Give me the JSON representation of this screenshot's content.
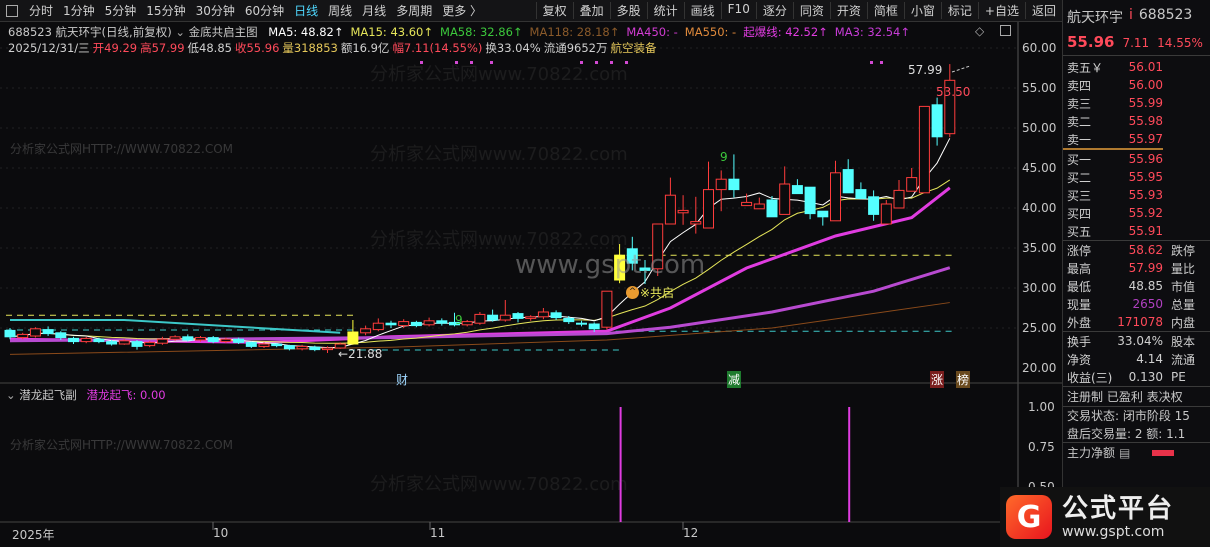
{
  "toolbar": {
    "periods": [
      "分时",
      "1分钟",
      "5分钟",
      "15分钟",
      "30分钟",
      "60分钟",
      "日线",
      "周线",
      "月线",
      "多周期",
      "更多 〉"
    ],
    "active": "日线",
    "tools": [
      "复权",
      "叠加",
      "多股",
      "统计",
      "画线",
      "F10",
      "逐分",
      "同资",
      "开资",
      "简框",
      "小窗",
      "标记",
      "+自选",
      "返回"
    ]
  },
  "header": {
    "title": "688523 航天环宇(日线,前复权)",
    "indicator": "金底共启主图",
    "ma": [
      {
        "label": "MA5: 48.82↑",
        "color": "#ffffff"
      },
      {
        "label": "MA15: 43.60↑",
        "color": "#e6e65a"
      },
      {
        "label": "MA58: 32.86↑",
        "color": "#3cc83c"
      },
      {
        "label": "MA118: 28.18↑",
        "color": "#8a5a2a"
      },
      {
        "label": "MA450: -",
        "color": "#d23cd2"
      },
      {
        "label": "MA550: -",
        "color": "#e08a3c"
      },
      {
        "label": "起爆线: 42.52↑",
        "color": "#e03ce0"
      },
      {
        "label": "MA3: 32.54↑",
        "color": "#c83cd8"
      }
    ],
    "ohlc": [
      {
        "t": "2025/12/31/三",
        "c": "#d0d0d0"
      },
      {
        "t": "开49.29",
        "c": "#ff4a5a"
      },
      {
        "t": "高57.99",
        "c": "#ff4a5a"
      },
      {
        "t": "低48.85",
        "c": "#d0d0d0"
      },
      {
        "t": "收55.96",
        "c": "#ff4a5a"
      },
      {
        "t": "量318853",
        "c": "#e6c85a"
      },
      {
        "t": "额16.9亿",
        "c": "#d0d0d0"
      },
      {
        "t": "幅7.11(14.55%)",
        "c": "#ff4a5a"
      },
      {
        "t": "换33.04%",
        "c": "#d0d0d0"
      },
      {
        "t": "流通9652万",
        "c": "#d0d0d0"
      },
      {
        "t": "航空装备",
        "c": "#e6c85a"
      }
    ]
  },
  "axis": {
    "price_ticks": [
      "60.00",
      "55.00",
      "50.00",
      "45.00",
      "40.00",
      "35.00",
      "30.00",
      "25.00",
      "20.00"
    ],
    "sub_ticks": [
      "1.00",
      "0.75",
      "0.50"
    ],
    "dates": [
      "2025年",
      "10",
      "11",
      "12"
    ]
  },
  "annotations": {
    "high": "57.99",
    "mid": "53.50",
    "low": "←21.88",
    "signal": "※共启",
    "nine": "9",
    "marks": [
      "财",
      "减",
      "涨",
      "榜"
    ]
  },
  "sub": {
    "title": "潜龙起飞副",
    "value": "潜龙起飞: 0.00"
  },
  "watermarks": {
    "a": "分析家公式网www.70822.com",
    "b": "分析家公式网HTTP://WWW.70822.COM",
    "c": "www.gspt.com"
  },
  "chart_data": {
    "type": "candlestick",
    "ylim": [
      20,
      60
    ],
    "up_color": "#ff3c3c",
    "down_color": "#54ffff",
    "ohlc": [
      [
        24.7,
        23.9,
        25.0,
        23.6
      ],
      [
        23.8,
        24.2,
        24.4,
        23.6
      ],
      [
        24.0,
        24.9,
        25.1,
        23.8
      ],
      [
        24.8,
        24.3,
        25.2,
        24.0
      ],
      [
        24.4,
        23.8,
        24.6,
        23.5
      ],
      [
        23.7,
        23.3,
        23.9,
        23.0
      ],
      [
        23.3,
        23.7,
        23.9,
        23.1
      ],
      [
        23.6,
        23.3,
        23.8,
        23.1
      ],
      [
        23.3,
        23.0,
        23.5,
        22.8
      ],
      [
        23.0,
        23.4,
        23.6,
        22.9
      ],
      [
        23.3,
        22.7,
        23.5,
        22.3
      ],
      [
        22.8,
        23.2,
        23.4,
        22.6
      ],
      [
        23.1,
        23.6,
        23.9,
        22.9
      ],
      [
        23.6,
        23.9,
        24.1,
        23.4
      ],
      [
        23.9,
        23.5,
        24.2,
        23.3
      ],
      [
        23.5,
        23.8,
        24.0,
        23.3
      ],
      [
        23.8,
        23.3,
        24.0,
        23.1
      ],
      [
        23.3,
        23.6,
        23.8,
        23.1
      ],
      [
        23.6,
        23.2,
        23.8,
        23.0
      ],
      [
        23.2,
        22.7,
        23.3,
        22.5
      ],
      [
        22.7,
        23.0,
        23.2,
        22.5
      ],
      [
        23.0,
        22.8,
        23.1,
        22.6
      ],
      [
        22.8,
        22.4,
        22.9,
        22.2
      ],
      [
        22.4,
        22.7,
        22.9,
        22.2
      ],
      [
        22.6,
        22.3,
        22.8,
        22.1
      ],
      [
        22.3,
        22.5,
        22.7,
        21.88
      ],
      [
        22.5,
        23.0,
        23.2,
        22.4
      ],
      [
        23.0,
        24.5,
        26.0,
        22.9
      ],
      [
        24.4,
        24.9,
        25.3,
        24.1
      ],
      [
        24.8,
        25.6,
        26.2,
        24.6
      ],
      [
        25.6,
        25.4,
        25.9,
        25.0
      ],
      [
        25.3,
        25.8,
        26.1,
        25.0
      ],
      [
        25.7,
        25.3,
        25.9,
        25.1
      ],
      [
        25.4,
        25.9,
        26.3,
        25.2
      ],
      [
        25.9,
        25.6,
        26.2,
        25.3
      ],
      [
        25.7,
        25.4,
        26.9,
        25.2
      ],
      [
        25.4,
        25.8,
        26.0,
        25.2
      ],
      [
        25.6,
        26.7,
        27.0,
        25.4
      ],
      [
        26.6,
        26.0,
        27.3,
        25.8
      ],
      [
        26.0,
        26.6,
        28.5,
        25.8
      ],
      [
        26.8,
        26.2,
        27.0,
        25.7
      ],
      [
        26.2,
        26.4,
        26.6,
        25.9
      ],
      [
        26.4,
        27.0,
        27.5,
        26.1
      ],
      [
        26.9,
        26.3,
        27.2,
        26.0
      ],
      [
        26.2,
        25.8,
        26.5,
        25.5
      ],
      [
        25.6,
        25.5,
        25.9,
        25.2
      ],
      [
        25.5,
        24.9,
        25.7,
        24.5
      ],
      [
        25.1,
        29.6,
        29.6,
        24.8
      ],
      [
        31.0,
        34.1,
        35.5,
        30.6
      ],
      [
        34.9,
        33.1,
        36.4,
        32.2
      ],
      [
        32.5,
        32.2,
        33.5,
        30.5
      ],
      [
        32.4,
        38.0,
        38.0,
        31.5
      ],
      [
        38.0,
        41.6,
        43.8,
        38.0
      ],
      [
        39.4,
        39.7,
        41.6,
        37.9
      ],
      [
        38.0,
        38.3,
        41.4,
        36.8
      ],
      [
        37.5,
        42.3,
        45.8,
        37.5
      ],
      [
        42.3,
        43.6,
        44.7,
        39.6
      ],
      [
        43.6,
        42.3,
        46.7,
        41.3
      ],
      [
        40.3,
        40.7,
        41.8,
        40.3
      ],
      [
        39.9,
        40.5,
        41.3,
        39.9
      ],
      [
        41.0,
        38.9,
        41.5,
        38.9
      ],
      [
        39.2,
        43.0,
        45.2,
        39.2
      ],
      [
        42.8,
        41.8,
        43.6,
        41.8
      ],
      [
        42.6,
        39.3,
        42.6,
        38.6
      ],
      [
        39.6,
        38.9,
        39.6,
        37.8
      ],
      [
        38.4,
        44.4,
        45.9,
        38.4
      ],
      [
        44.8,
        41.9,
        46.1,
        41.9
      ],
      [
        42.3,
        41.2,
        43.2,
        41.2
      ],
      [
        41.4,
        39.2,
        42.2,
        38.4
      ],
      [
        38.0,
        40.5,
        41.0,
        38.0
      ],
      [
        40.0,
        42.2,
        43.5,
        40.0
      ],
      [
        42.1,
        43.8,
        45.0,
        42.1
      ],
      [
        41.9,
        52.7,
        52.7,
        41.9
      ],
      [
        52.9,
        48.9,
        53.8,
        47.8
      ],
      [
        49.29,
        55.96,
        57.99,
        48.85
      ]
    ],
    "special_yellow": [
      27,
      48
    ],
    "lines": [
      {
        "name": "起爆线",
        "color": "#e03ce0",
        "width": 3,
        "points": [
          [
            0,
            23.6
          ],
          [
            20,
            23.2
          ],
          [
            30,
            23.9
          ],
          [
            47,
            24.6
          ],
          [
            52,
            27.5
          ],
          [
            58,
            32.5
          ],
          [
            65,
            36.5
          ],
          [
            71,
            38.8
          ],
          [
            74,
            42.52
          ]
        ]
      },
      {
        "name": "MA3",
        "color": "#b84ad0",
        "width": 3,
        "points": [
          [
            0,
            23.4
          ],
          [
            30,
            23.8
          ],
          [
            47,
            24.3
          ],
          [
            52,
            25.1
          ],
          [
            60,
            27.0
          ],
          [
            68,
            29.6
          ],
          [
            74,
            32.54
          ]
        ]
      },
      {
        "name": "MA118",
        "color": "#8a4a1a",
        "width": 1,
        "points": [
          [
            0,
            21.7
          ],
          [
            30,
            22.6
          ],
          [
            47,
            23.5
          ],
          [
            60,
            25.0
          ],
          [
            74,
            28.18
          ]
        ]
      },
      {
        "name": "cyan",
        "color": "#3cc8c8",
        "width": 2,
        "points": [
          [
            0,
            26.0
          ],
          [
            9,
            26.0
          ],
          [
            26,
            24.4
          ]
        ]
      }
    ],
    "dashed": [
      {
        "color": "#e6e65a",
        "value": 26.6,
        "from": 0,
        "to": 27
      },
      {
        "color": "#3cc8c8",
        "value": 24.75,
        "from": 0,
        "to": 27
      },
      {
        "color": "#3cc8c8",
        "value": 22.25,
        "from": 27,
        "to": 48
      },
      {
        "color": "#e6e65a",
        "value": 34.1,
        "from": 48,
        "to": 74
      },
      {
        "color": "#3cc8c8",
        "value": 24.6,
        "from": 48,
        "to": 74
      }
    ],
    "sub_spikes": [
      48,
      66
    ]
  },
  "quote": {
    "name": "航天环宇",
    "code": "688523",
    "price": "55.96",
    "change": "7.11",
    "pct": "14.55%",
    "asks": [
      {
        "l": "卖五￥",
        "v": "56.01"
      },
      {
        "l": "卖四",
        "v": "56.00"
      },
      {
        "l": "卖三",
        "v": "55.99"
      },
      {
        "l": "卖二",
        "v": "55.98"
      },
      {
        "l": "卖一",
        "v": "55.97"
      }
    ],
    "bids": [
      {
        "l": "买一",
        "v": "55.96"
      },
      {
        "l": "买二",
        "v": "55.95"
      },
      {
        "l": "买三",
        "v": "55.93"
      },
      {
        "l": "买四",
        "v": "55.92"
      },
      {
        "l": "买五",
        "v": "55.91"
      }
    ],
    "stats1": [
      {
        "l": "涨停",
        "v": "58.62",
        "c": "#ff4a5a",
        "e": "跌停"
      },
      {
        "l": "最高",
        "v": "57.99",
        "c": "#ff4a5a",
        "e": "量比"
      },
      {
        "l": "最低",
        "v": "48.85",
        "c": "#d0d0d0",
        "e": "市值"
      },
      {
        "l": "现量",
        "v": "2650",
        "c": "#b040c0",
        "e": "总量"
      },
      {
        "l": "外盘",
        "v": "171078",
        "c": "#ff4a5a",
        "e": "内盘"
      }
    ],
    "stats2": [
      {
        "l": "换手",
        "v": "33.04%",
        "c": "#d0d0d0",
        "e": "股本"
      },
      {
        "l": "净资",
        "v": "4.14",
        "c": "#d0d0d0",
        "e": "流通"
      },
      {
        "l": "收益(三)",
        "v": "0.130",
        "c": "#d0d0d0",
        "e": "PE"
      }
    ],
    "tags": "注册制 已盈利 表决权",
    "status": "交易状态: 闭市阶段 15",
    "after": "盘后交易量: 2  额: 1.1",
    "flow": "主力净额"
  },
  "logo": {
    "text": "公式平台",
    "url": "www.gspt.com"
  }
}
